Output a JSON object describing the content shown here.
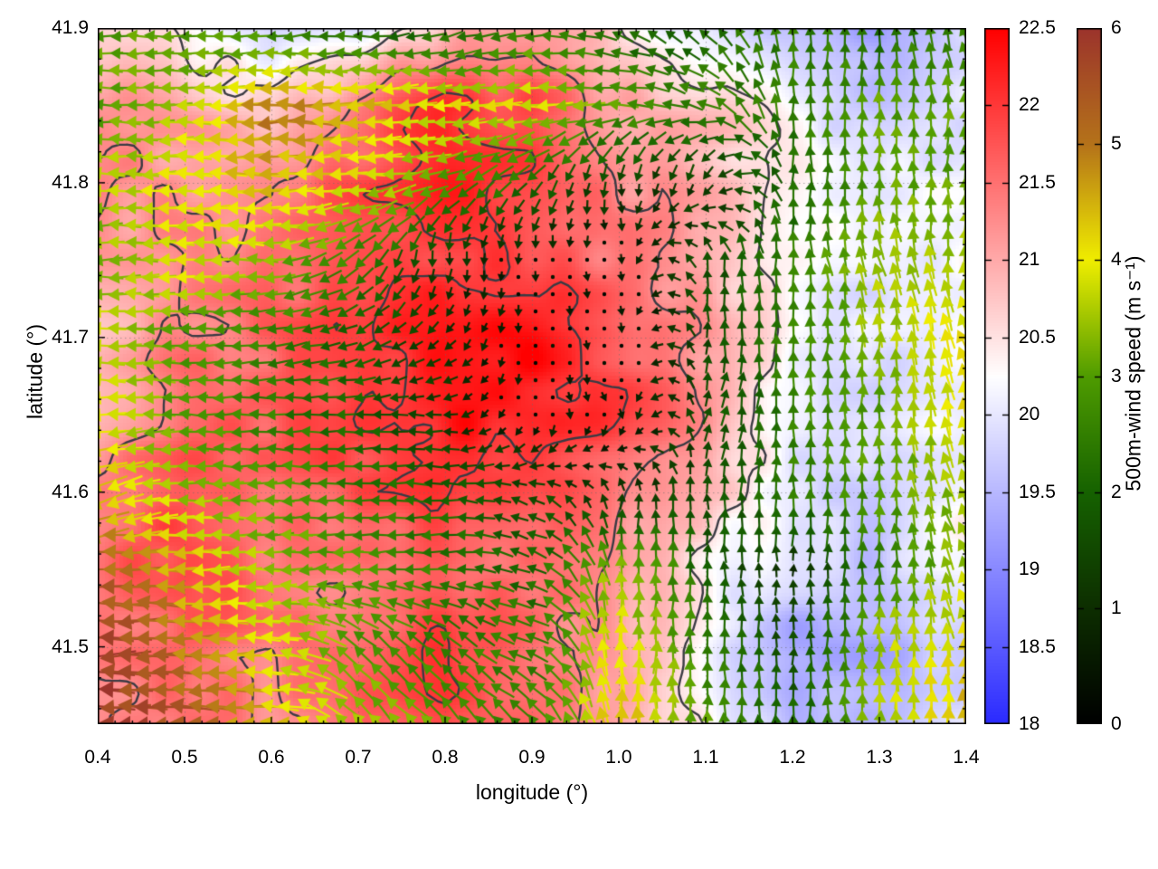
{
  "chart_data": {
    "type": "heatmap",
    "subtype": "temperature-field-with-wind-vectors-and-contours",
    "title": "",
    "xlabel": "longitude (°)",
    "ylabel": "latitude (°)",
    "xlim": [
      0.4,
      1.4
    ],
    "ylim": [
      41.45,
      41.9
    ],
    "grid": "dotted",
    "x_ticks": [
      {
        "v": 0.4,
        "t": "0.4"
      },
      {
        "v": 0.5,
        "t": "0.5"
      },
      {
        "v": 0.6,
        "t": "0.6"
      },
      {
        "v": 0.7,
        "t": "0.7"
      },
      {
        "v": 0.8,
        "t": "0.8"
      },
      {
        "v": 0.9,
        "t": "0.9"
      },
      {
        "v": 1.0,
        "t": "1.0"
      },
      {
        "v": 1.1,
        "t": "1.1"
      },
      {
        "v": 1.2,
        "t": "1.2"
      },
      {
        "v": 1.3,
        "t": "1.3"
      },
      {
        "v": 1.4,
        "t": "1.4"
      }
    ],
    "y_ticks": [
      {
        "v": 41.5,
        "t": "41.5"
      },
      {
        "v": 41.6,
        "t": "41.6"
      },
      {
        "v": 41.7,
        "t": "41.7"
      },
      {
        "v": 41.8,
        "t": "41.8"
      },
      {
        "v": 41.9,
        "t": "41.9"
      }
    ],
    "x_minor_step": 0.02,
    "y_minor_step": 0.02,
    "temperature": {
      "colorbar_range": [
        18,
        22.5
      ],
      "colorbar_ticks": [
        {
          "v": 18,
          "t": "18"
        },
        {
          "v": 18.5,
          "t": "18.5"
        },
        {
          "v": 19,
          "t": "19"
        },
        {
          "v": 19.5,
          "t": "19.5"
        },
        {
          "v": 20,
          "t": "20"
        },
        {
          "v": 20.5,
          "t": "20.5"
        },
        {
          "v": 21,
          "t": "21"
        },
        {
          "v": 21.5,
          "t": "21.5"
        },
        {
          "v": 22,
          "t": "22"
        },
        {
          "v": 22.5,
          "t": "22.5"
        }
      ],
      "colormap": {
        "min_color": "#2a2aff",
        "mid_color": "#ffffff",
        "max_color": "#ff0000",
        "mid_value": 20.25
      },
      "lon": [
        0.4,
        0.5,
        0.6,
        0.7,
        0.8,
        0.9,
        1.0,
        1.1,
        1.2,
        1.3,
        1.4
      ],
      "lat": [
        41.9,
        41.85,
        41.8,
        41.75,
        41.7,
        41.65,
        41.6,
        41.55,
        41.5,
        41.45
      ],
      "values": [
        [
          20.6,
          20.4,
          19.8,
          20.0,
          20.8,
          21.3,
          20.5,
          20.0,
          19.6,
          19.3,
          19.8
        ],
        [
          21.2,
          21.0,
          20.6,
          21.4,
          22.0,
          21.8,
          21.0,
          20.8,
          20.2,
          19.6,
          19.9
        ],
        [
          21.3,
          21.2,
          21.4,
          21.8,
          22.2,
          21.9,
          21.3,
          21.0,
          20.4,
          20.0,
          20.2
        ],
        [
          21.0,
          21.3,
          21.5,
          21.9,
          22.0,
          21.8,
          21.4,
          21.0,
          20.3,
          20.0,
          20.2
        ],
        [
          20.8,
          21.4,
          21.6,
          21.9,
          22.3,
          22.4,
          21.8,
          21.2,
          20.2,
          19.9,
          20.2
        ],
        [
          21.0,
          21.6,
          21.7,
          22.0,
          22.3,
          22.3,
          21.9,
          21.2,
          20.1,
          19.8,
          20.2
        ],
        [
          21.4,
          21.8,
          21.6,
          21.8,
          22.0,
          21.9,
          21.4,
          20.8,
          20.0,
          19.7,
          20.2
        ],
        [
          21.6,
          21.9,
          21.5,
          21.3,
          21.6,
          21.5,
          21.2,
          20.4,
          19.8,
          19.6,
          20.4
        ],
        [
          21.3,
          21.7,
          21.4,
          21.5,
          22.0,
          21.6,
          21.1,
          20.2,
          19.3,
          19.3,
          19.8
        ],
        [
          21.2,
          21.5,
          21.3,
          21.6,
          21.9,
          21.5,
          21.0,
          20.4,
          19.5,
          19.6,
          19.9
        ]
      ]
    },
    "wind": {
      "label": "500m-wind speed (m s⁻¹)",
      "colorbar_range": [
        0,
        6
      ],
      "colorbar_ticks": [
        {
          "v": 0,
          "t": "0"
        },
        {
          "v": 1,
          "t": "1"
        },
        {
          "v": 2,
          "t": "2"
        },
        {
          "v": 3,
          "t": "3"
        },
        {
          "v": 4,
          "t": "4"
        },
        {
          "v": 5,
          "t": "5"
        },
        {
          "v": 6,
          "t": "6"
        }
      ],
      "colormap_stops": [
        [
          0,
          "#000000"
        ],
        [
          1,
          "#0d2e00"
        ],
        [
          2,
          "#166200"
        ],
        [
          3,
          "#4f9c00"
        ],
        [
          4,
          "#f0ee00"
        ],
        [
          5,
          "#b5731a"
        ],
        [
          6,
          "#9c342c"
        ]
      ],
      "lon": [
        0.4,
        0.5,
        0.6,
        0.7,
        0.8,
        0.9,
        1.0,
        1.1,
        1.2,
        1.3,
        1.4
      ],
      "lat": [
        41.9,
        41.85,
        41.8,
        41.75,
        41.7,
        41.65,
        41.6,
        41.55,
        41.5,
        41.45
      ],
      "dir_deg": [
        [
          180,
          180,
          185,
          180,
          200,
          185,
          160,
          135,
          90,
          90,
          112
        ],
        [
          180,
          180,
          180,
          180,
          180,
          180,
          180,
          160,
          90,
          90,
          90
        ],
        [
          180,
          180,
          180,
          180,
          200,
          225,
          270,
          250,
          90,
          90,
          90
        ],
        [
          180,
          180,
          180,
          225,
          270,
          270,
          280,
          90,
          90,
          112,
          90
        ],
        [
          180,
          180,
          185,
          205,
          225,
          270,
          280,
          90,
          90,
          90,
          112
        ],
        [
          180,
          180,
          180,
          180,
          180,
          270,
          300,
          70,
          90,
          90,
          100
        ],
        [
          202,
          180,
          180,
          180,
          180,
          160,
          90,
          90,
          90,
          90,
          112
        ],
        [
          180,
          180,
          180,
          180,
          180,
          160,
          90,
          90,
          90,
          90,
          112
        ],
        [
          180,
          180,
          180,
          135,
          135,
          160,
          90,
          90,
          90,
          90,
          100
        ],
        [
          180,
          180,
          180,
          135,
          135,
          135,
          90,
          90,
          90,
          90,
          90
        ]
      ],
      "speed": [
        [
          3.0,
          3.0,
          2.5,
          2.0,
          2.0,
          2.5,
          2.0,
          2.0,
          2.5,
          2.0,
          2.5
        ],
        [
          3.0,
          3.5,
          5.0,
          4.5,
          4.0,
          4.0,
          3.0,
          2.5,
          2.5,
          3.0,
          3.0
        ],
        [
          3.5,
          4.0,
          4.5,
          4.0,
          3.0,
          2.0,
          1.2,
          1.2,
          2.0,
          3.0,
          3.0
        ],
        [
          3.2,
          4.0,
          3.5,
          2.5,
          1.2,
          0.5,
          0.4,
          1.5,
          2.5,
          3.5,
          3.5
        ],
        [
          3.8,
          3.0,
          2.5,
          2.0,
          1.0,
          0.4,
          0.4,
          1.5,
          2.5,
          3.5,
          4.0
        ],
        [
          4.0,
          3.0,
          2.5,
          2.0,
          1.2,
          0.4,
          0.5,
          1.5,
          2.5,
          3.0,
          4.0
        ],
        [
          4.5,
          3.5,
          3.0,
          2.5,
          2.0,
          1.5,
          1.0,
          1.5,
          2.5,
          3.0,
          3.5
        ],
        [
          5.5,
          4.5,
          3.5,
          3.0,
          2.5,
          2.0,
          3.5,
          2.0,
          1.0,
          2.5,
          3.5
        ],
        [
          6.0,
          5.0,
          4.0,
          3.0,
          2.5,
          2.5,
          4.0,
          2.5,
          1.5,
          3.5,
          4.0
        ],
        [
          6.0,
          5.5,
          4.5,
          3.5,
          3.0,
          2.5,
          4.5,
          3.0,
          2.0,
          3.5,
          4.5
        ]
      ]
    },
    "contours": {
      "levels": [
        20.5,
        21.3,
        22.0
      ],
      "color": "#3b3b44"
    }
  }
}
